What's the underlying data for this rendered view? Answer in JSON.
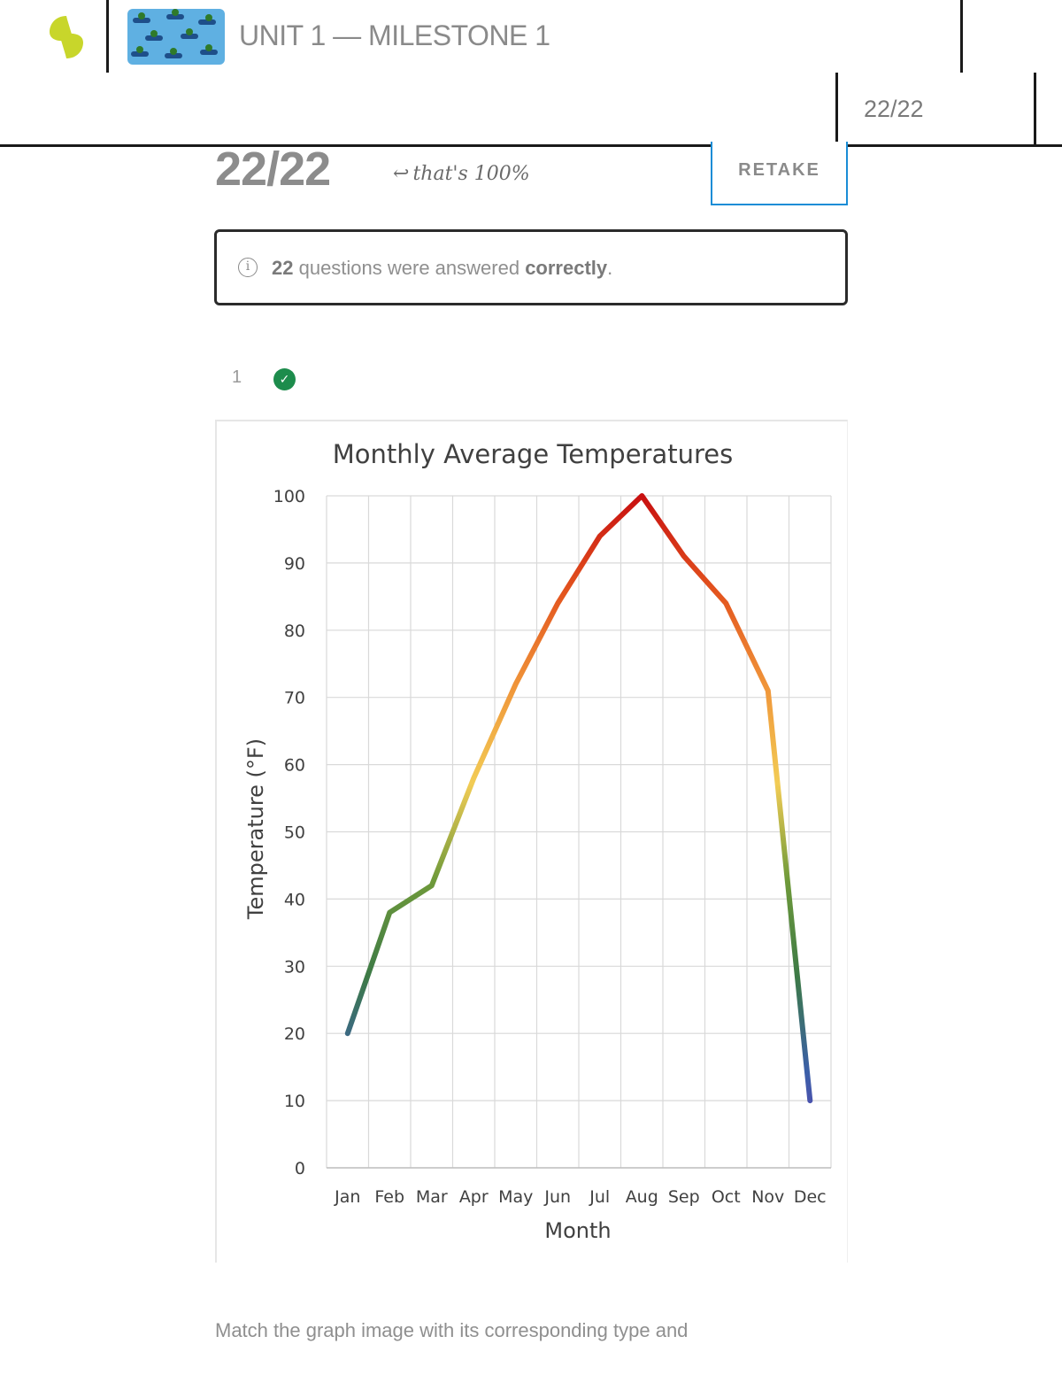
{
  "header": {
    "title": "UNIT 1 — MILESTONE 1",
    "score": "22/22"
  },
  "result": {
    "score": "22/22",
    "note": "that's 100%",
    "retake_label": "RETAKE"
  },
  "info": {
    "count": "22",
    "text_mid": " questions were answered ",
    "text_bold": "correctly",
    "text_end": "."
  },
  "question": {
    "number": "1",
    "status": "correct",
    "prompt": "Match the graph image with its corresponding type and"
  },
  "colors": {
    "logo": "#c8d62b",
    "retake_border": "#1a8dd6",
    "check": "#1d8c4c"
  },
  "chart_data": {
    "type": "line",
    "title": "Monthly Average Temperatures",
    "xlabel": "Month",
    "ylabel": "Temperature (°F)",
    "categories": [
      "Jan",
      "Feb",
      "Mar",
      "Apr",
      "May",
      "Jun",
      "Jul",
      "Aug",
      "Sep",
      "Oct",
      "Nov",
      "Dec"
    ],
    "values": [
      20,
      38,
      42,
      58,
      72,
      84,
      94,
      100,
      91,
      84,
      71,
      10
    ],
    "ylim": [
      0,
      100
    ],
    "yticks": [
      0,
      10,
      20,
      30,
      40,
      50,
      60,
      70,
      80,
      90,
      100
    ],
    "grid": true,
    "legend": "none",
    "line_gradient": [
      "#6a3ab8",
      "#3b5fa8",
      "#3d7a46",
      "#6f9a3a",
      "#f2cc55",
      "#f0963a",
      "#e3541e",
      "#c81010"
    ]
  }
}
